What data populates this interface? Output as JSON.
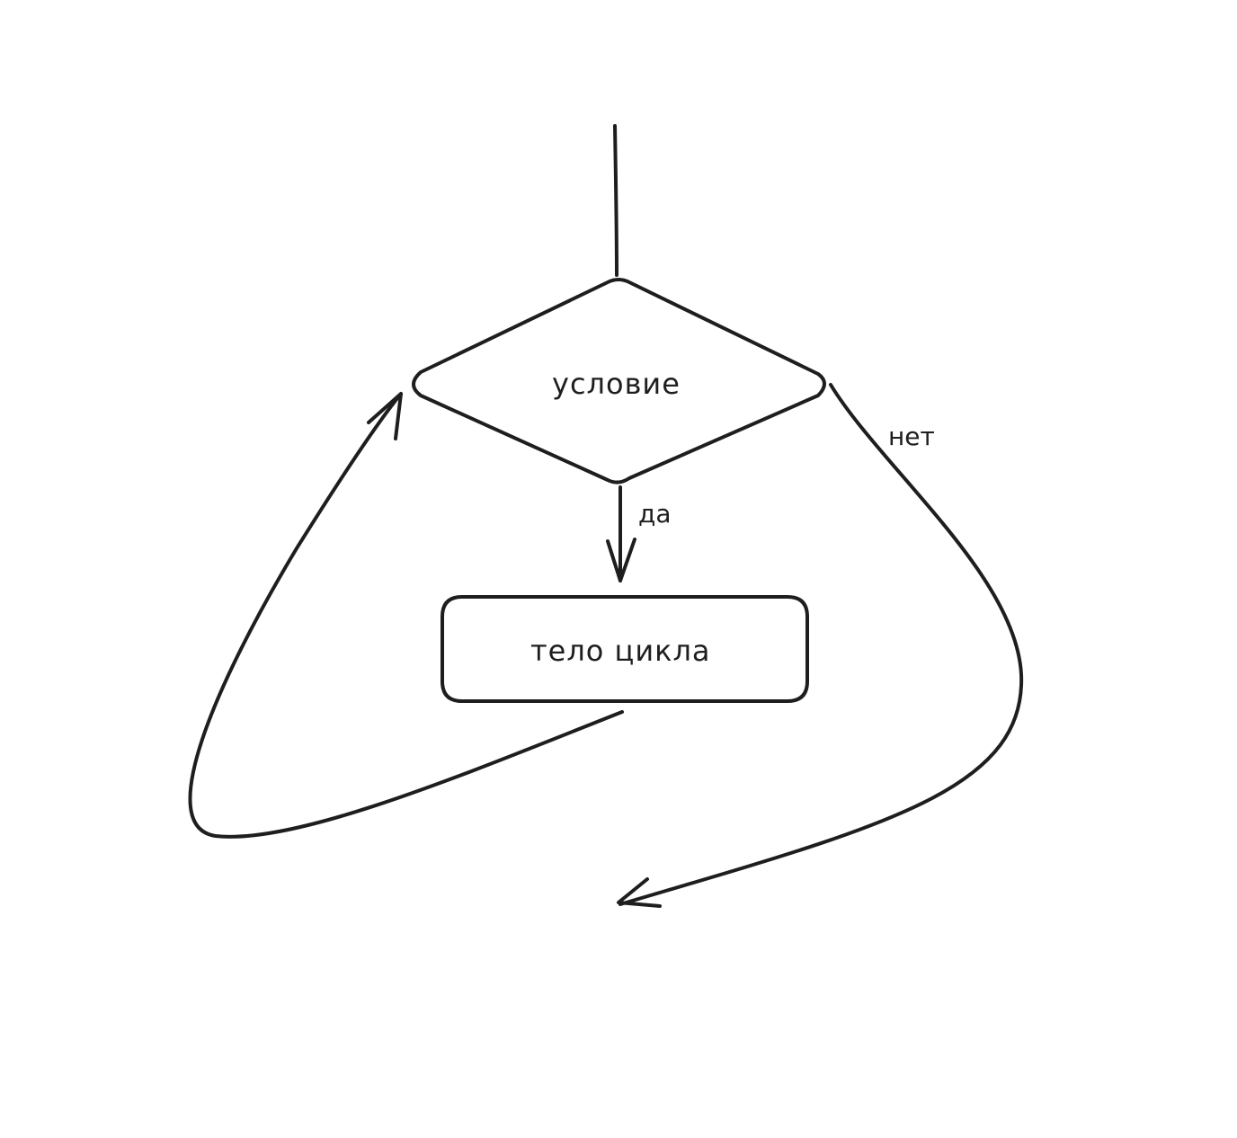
{
  "diagram": {
    "nodes": {
      "condition": {
        "label": "условие",
        "shape": "diamond"
      },
      "body": {
        "label": "тело цикла",
        "shape": "rounded-rectangle"
      }
    },
    "edges": {
      "entry": {
        "from": "",
        "to": "condition",
        "label": ""
      },
      "yes": {
        "from": "condition",
        "to": "body",
        "label": "да"
      },
      "loop_back": {
        "from": "body",
        "to": "condition",
        "label": ""
      },
      "no": {
        "from": "condition",
        "to": "exit",
        "label": "нет"
      }
    },
    "colors": {
      "stroke": "#1e1e1e",
      "background": "#ffffff"
    }
  }
}
